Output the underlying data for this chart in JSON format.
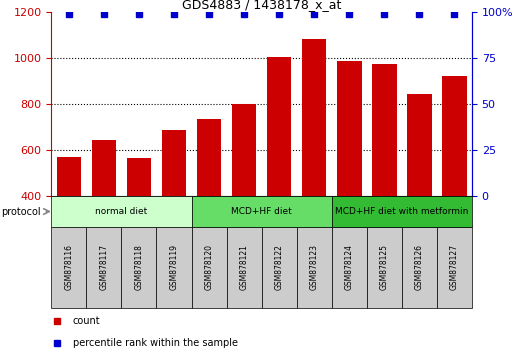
{
  "title": "GDS4883 / 1438178_x_at",
  "samples": [
    "GSM878116",
    "GSM878117",
    "GSM878118",
    "GSM878119",
    "GSM878120",
    "GSM878121",
    "GSM878122",
    "GSM878123",
    "GSM878124",
    "GSM878125",
    "GSM878126",
    "GSM878127"
  ],
  "counts": [
    570,
    645,
    568,
    690,
    735,
    800,
    1005,
    1085,
    990,
    975,
    845,
    925
  ],
  "percentile_ranks": [
    99,
    99,
    99,
    99,
    99,
    99,
    99,
    99,
    99,
    99,
    99,
    99
  ],
  "bar_color": "#cc0000",
  "dot_color": "#0000cc",
  "ylim_left": [
    400,
    1200
  ],
  "ylim_right": [
    0,
    100
  ],
  "yticks_left": [
    400,
    600,
    800,
    1000,
    1200
  ],
  "yticks_right": [
    0,
    25,
    50,
    75,
    100
  ],
  "yticklabels_right": [
    "0",
    "25",
    "50",
    "75",
    "100%"
  ],
  "grid_values": [
    600,
    800,
    1000
  ],
  "groups": [
    {
      "label": "normal diet",
      "start": 0,
      "end": 4,
      "color": "#ccffcc"
    },
    {
      "label": "MCD+HF diet",
      "start": 4,
      "end": 8,
      "color": "#66dd66"
    },
    {
      "label": "MCD+HF diet with metformin",
      "start": 8,
      "end": 12,
      "color": "#33bb33"
    }
  ],
  "protocol_label": "protocol",
  "legend_count_label": "count",
  "legend_percentile_label": "percentile rank within the sample",
  "background_color": "#ffffff",
  "sample_box_color": "#cccccc",
  "left_tick_color": "#cc0000",
  "right_tick_color": "#0000cc"
}
